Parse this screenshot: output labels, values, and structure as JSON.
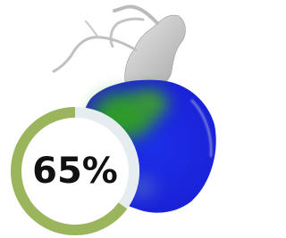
{
  "progress": {
    "value": 65,
    "label": "65%",
    "lim": [
      0,
      100
    ]
  }
}
